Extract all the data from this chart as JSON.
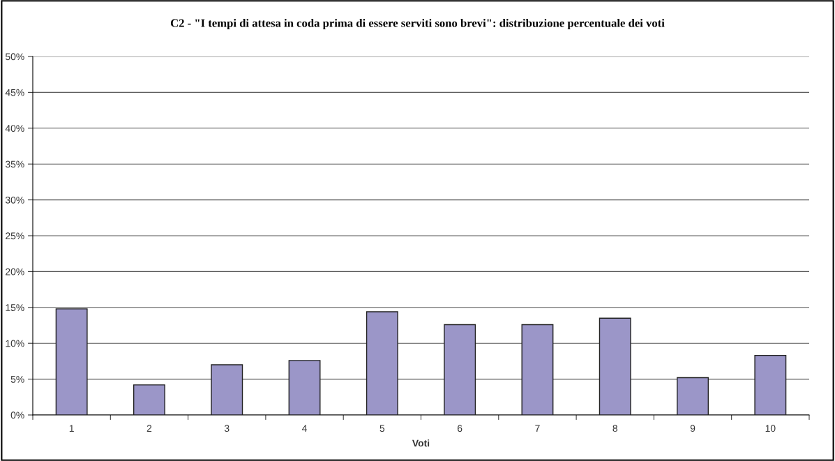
{
  "chart_data": {
    "type": "bar",
    "title": "C2 - \"I tempi di attesa in coda prima di essere serviti sono brevi\": distribuzione percentuale dei voti",
    "xlabel": "Voti",
    "categories": [
      "1",
      "2",
      "3",
      "4",
      "5",
      "6",
      "7",
      "8",
      "9",
      "10"
    ],
    "values": [
      14.8,
      4.2,
      7.0,
      7.6,
      14.4,
      12.6,
      12.6,
      13.5,
      5.2,
      8.3
    ],
    "color": "#9b96c8",
    "ylim": [
      0,
      50
    ],
    "yticks": [
      {
        "value": 0,
        "label": "0%"
      },
      {
        "value": 5,
        "label": "5%"
      },
      {
        "value": 10,
        "label": "10%"
      },
      {
        "value": 15,
        "label": "15%"
      },
      {
        "value": 20,
        "label": "20%"
      },
      {
        "value": 25,
        "label": "25%"
      },
      {
        "value": 30,
        "label": "30%"
      },
      {
        "value": 35,
        "label": "35%"
      },
      {
        "value": 40,
        "label": "40%"
      },
      {
        "value": 45,
        "label": "45%"
      },
      {
        "value": 50,
        "label": "50%"
      }
    ],
    "grid": "y",
    "legend": false
  }
}
